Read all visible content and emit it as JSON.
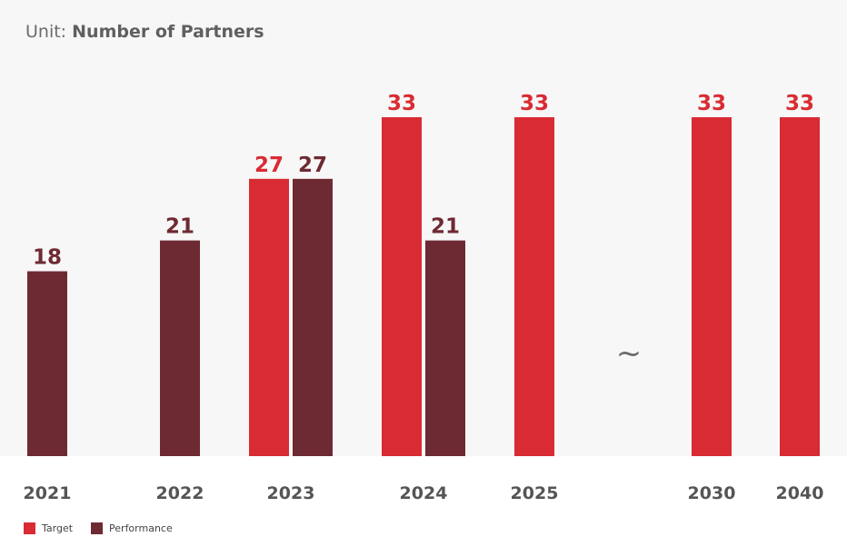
{
  "header": {
    "unit_prefix": "Unit:",
    "unit_value": "Number of Partners"
  },
  "colors": {
    "target": "#d92b33",
    "performance": "#6e2a33",
    "axis_text": "#555555",
    "break": "#6b6b6b"
  },
  "legend": {
    "target_label": "Target",
    "performance_label": "Performance"
  },
  "break_symbol": "~",
  "chart_data": {
    "type": "bar",
    "title": "",
    "xlabel": "",
    "ylabel": "Number of Partners",
    "ylim": [
      0,
      33
    ],
    "grid": false,
    "legend_position": "bottom-left",
    "categories": [
      "2021",
      "2022",
      "2023",
      "2024",
      "2025",
      "2030",
      "2040"
    ],
    "series": [
      {
        "name": "Target",
        "values": [
          null,
          null,
          27,
          33,
          33,
          33,
          33
        ]
      },
      {
        "name": "Performance",
        "values": [
          18,
          21,
          27,
          21,
          null,
          null,
          null
        ]
      }
    ]
  }
}
